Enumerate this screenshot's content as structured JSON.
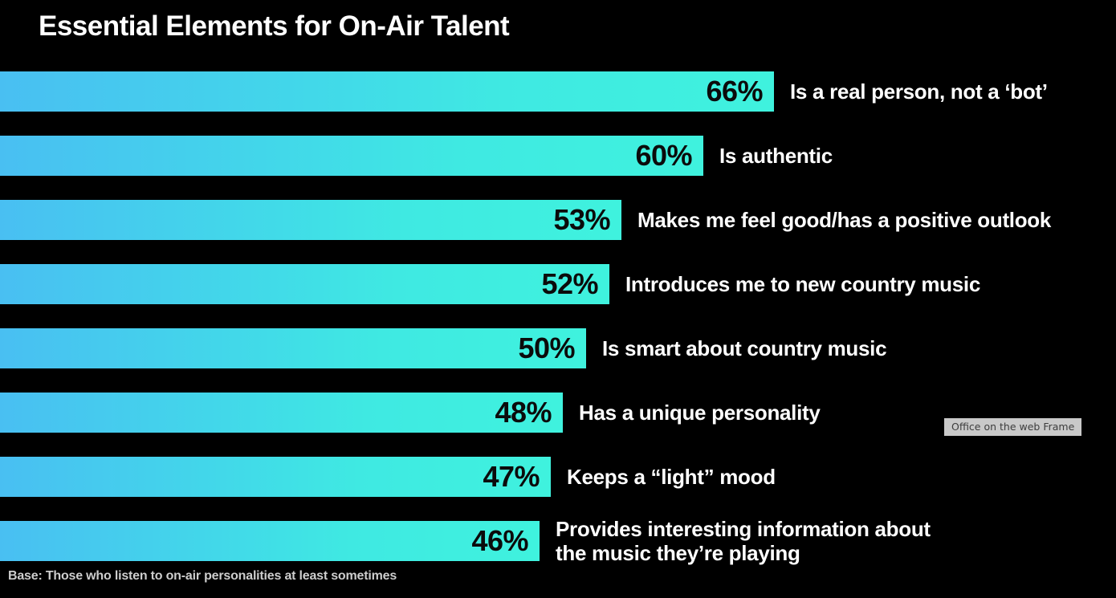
{
  "title": "Essential Elements for On-Air Talent",
  "footer_note": "Base: Those who listen to on-air personalities at least sometimes",
  "overlay": {
    "frame_label": "Office on the web Frame"
  },
  "colors": {
    "background": "#000000",
    "bar_gradient_start": "#49bff2",
    "bar_gradient_end": "#3ff2de",
    "value_text": "#0b0b0b",
    "category_text": "#ffffff",
    "footer_text": "#cdcdcd",
    "overlay_background": "#c9c9c9",
    "overlay_text": "#3d3d3d"
  },
  "chart_data": {
    "type": "bar",
    "orientation": "horizontal",
    "title": "Essential Elements for On-Air Talent",
    "categories": [
      "Is a real person, not a ‘bot’",
      "Is authentic",
      "Makes me feel good/has a positive outlook",
      "Introduces me to new country music",
      "Is smart about country music",
      "Has a unique personality",
      "Keeps a “light” mood",
      "Provides interesting information about\nthe music they’re playing"
    ],
    "values": [
      66,
      60,
      53,
      52,
      50,
      48,
      47,
      46
    ],
    "unit": "%",
    "value_label_position": "inside-end",
    "category_label_position": "outside-end",
    "xlim": [
      0,
      95
    ],
    "grid": false,
    "legend": false,
    "annotation": "Base: Those who listen to on-air personalities at least sometimes"
  }
}
